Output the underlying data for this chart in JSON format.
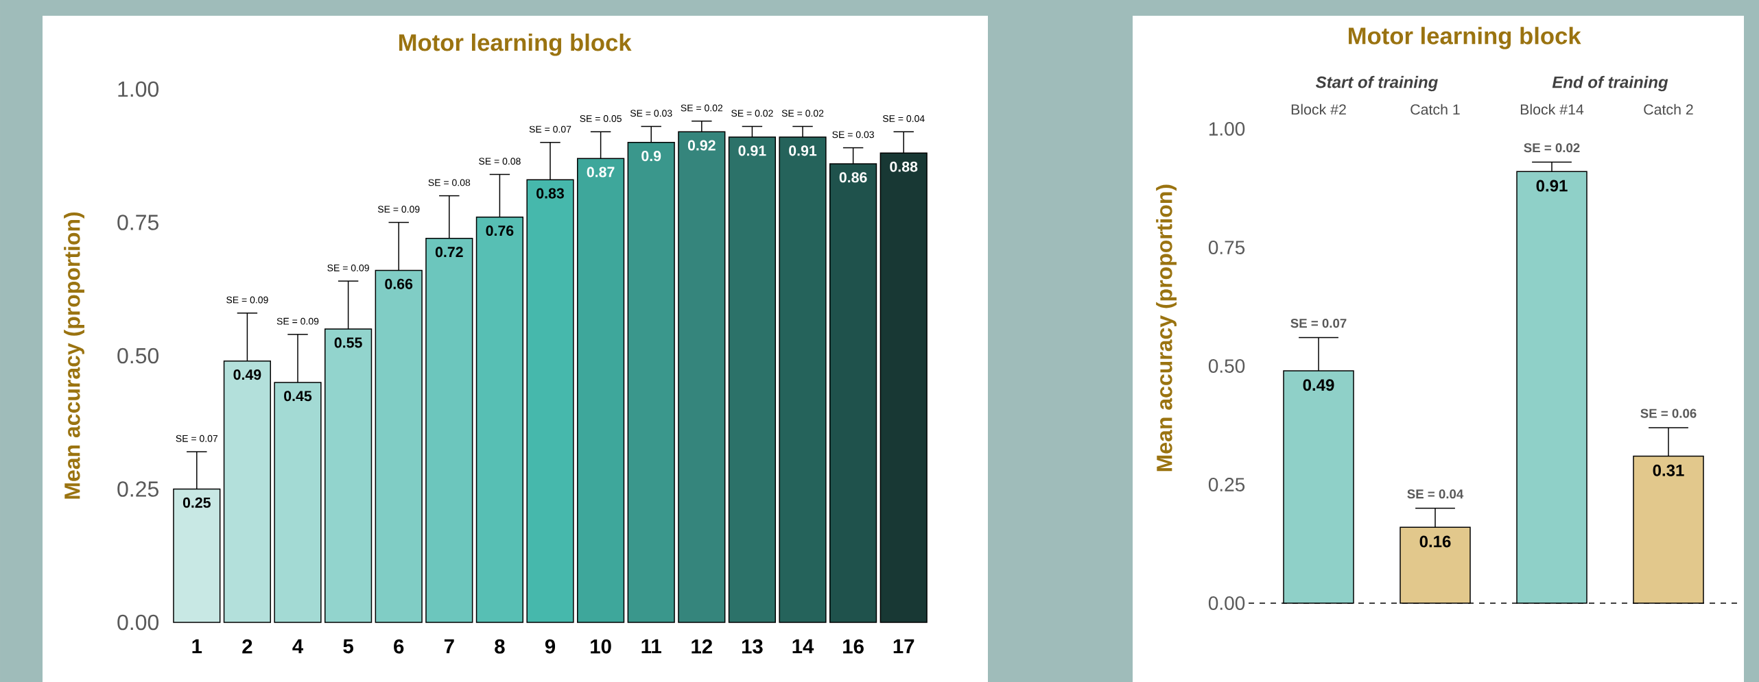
{
  "chart_data": [
    {
      "type": "bar",
      "title": "Motor learning block",
      "ylabel": "Mean accuracy (proportion)",
      "categories": [
        "1",
        "2",
        "4",
        "5",
        "6",
        "7",
        "8",
        "9",
        "10",
        "11",
        "12",
        "13",
        "14",
        "16",
        "17"
      ],
      "values": [
        0.25,
        0.49,
        0.45,
        0.55,
        0.66,
        0.72,
        0.76,
        0.83,
        0.87,
        0.9,
        0.92,
        0.91,
        0.91,
        0.86,
        0.88
      ],
      "errors": [
        [
          0.25,
          0.32
        ],
        [
          0.49,
          0.58
        ],
        [
          0.45,
          0.54
        ],
        [
          0.55,
          0.64
        ],
        [
          0.66,
          0.75
        ],
        [
          0.72,
          0.8
        ],
        [
          0.76,
          0.84
        ],
        [
          0.83,
          0.9
        ],
        [
          0.87,
          0.92
        ],
        [
          0.9,
          0.93
        ],
        [
          0.92,
          0.94
        ],
        [
          0.91,
          0.93
        ],
        [
          0.91,
          0.93
        ],
        [
          0.86,
          0.89
        ],
        [
          0.88,
          0.92
        ]
      ],
      "colors": [
        "#c8e8e4",
        "#b3e0db",
        "#a3dad4",
        "#92d4cd",
        "#80cdc5",
        "#6cc6bd",
        "#57bfb4",
        "#46b8ac",
        "#3ea79b",
        "#3a978c",
        "#35857c",
        "#2c7269",
        "#25635b",
        "#1f524c",
        "#183834"
      ],
      "data_labels": true,
      "ylim": [
        0,
        1
      ],
      "yticks": [
        {
          "value": 0,
          "label": "0.00"
        },
        {
          "value": 0.25,
          "label": "0.25"
        },
        {
          "value": 0.5,
          "label": "0.50"
        },
        {
          "value": 0.75,
          "label": "0.75"
        },
        {
          "value": 1,
          "label": "1.00"
        }
      ],
      "annotations": [
        {
          "text": "SE = 0.07",
          "x": "1",
          "y": 0.32
        },
        {
          "text": "SE = 0.09",
          "x": "2",
          "y": 0.58
        },
        {
          "text": "SE = 0.09",
          "x": "4",
          "y": 0.54
        },
        {
          "text": "SE = 0.09",
          "x": "5",
          "y": 0.64
        },
        {
          "text": "SE = 0.09",
          "x": "6",
          "y": 0.75
        },
        {
          "text": "SE = 0.08",
          "x": "7",
          "y": 0.8
        },
        {
          "text": "SE = 0.08",
          "x": "8",
          "y": 0.84
        },
        {
          "text": "SE = 0.07",
          "x": "9",
          "y": 0.9
        },
        {
          "text": "SE = 0.05",
          "x": "10",
          "y": 0.92
        },
        {
          "text": "SE = 0.03",
          "x": "11",
          "y": 0.93
        },
        {
          "text": "SE = 0.02",
          "x": "12",
          "y": 0.94
        },
        {
          "text": "SE = 0.02",
          "x": "13",
          "y": 0.93
        },
        {
          "text": "SE = 0.02",
          "x": "14",
          "y": 0.93
        },
        {
          "text": "SE = 0.03",
          "x": "16",
          "y": 0.89
        },
        {
          "text": "SE = 0.04",
          "x": "17",
          "y": 0.92
        }
      ]
    },
    {
      "type": "bar",
      "title": "Motor learning block",
      "ylabel": "Mean accuracy (proportion)",
      "categories": [
        "Block #2",
        "Catch 1",
        "Block #14",
        "Catch 2"
      ],
      "values": [
        0.49,
        0.16,
        0.91,
        0.31
      ],
      "errors": [
        [
          0.49,
          0.56
        ],
        [
          0.16,
          0.2
        ],
        [
          0.91,
          0.93
        ],
        [
          0.31,
          0.37
        ]
      ],
      "colors": [
        "#8fd0c8",
        "#e2c88c",
        "#8fd0c8",
        "#e2c88c"
      ],
      "data_labels": true,
      "ylim": [
        0,
        1
      ],
      "yticks": [
        {
          "value": 0,
          "label": "0.00"
        },
        {
          "value": 0.25,
          "label": "0.25"
        },
        {
          "value": 0.5,
          "label": "0.50"
        },
        {
          "value": 0.75,
          "label": "0.75"
        },
        {
          "value": 1,
          "label": "1.00"
        }
      ],
      "ref_lines": [
        {
          "axis": "y",
          "value": 0,
          "line_style": "dashed"
        }
      ],
      "annotations": [
        {
          "text": "SE = 0.07",
          "x": "Block #2",
          "y": 0.56
        },
        {
          "text": "SE = 0.04",
          "x": "Catch 1",
          "y": 0.2
        },
        {
          "text": "SE = 0.02",
          "x": "Block #14",
          "y": 0.93
        },
        {
          "text": "SE = 0.06",
          "x": "Catch 2",
          "y": 0.37
        },
        "Start of training",
        "End of training"
      ]
    }
  ]
}
